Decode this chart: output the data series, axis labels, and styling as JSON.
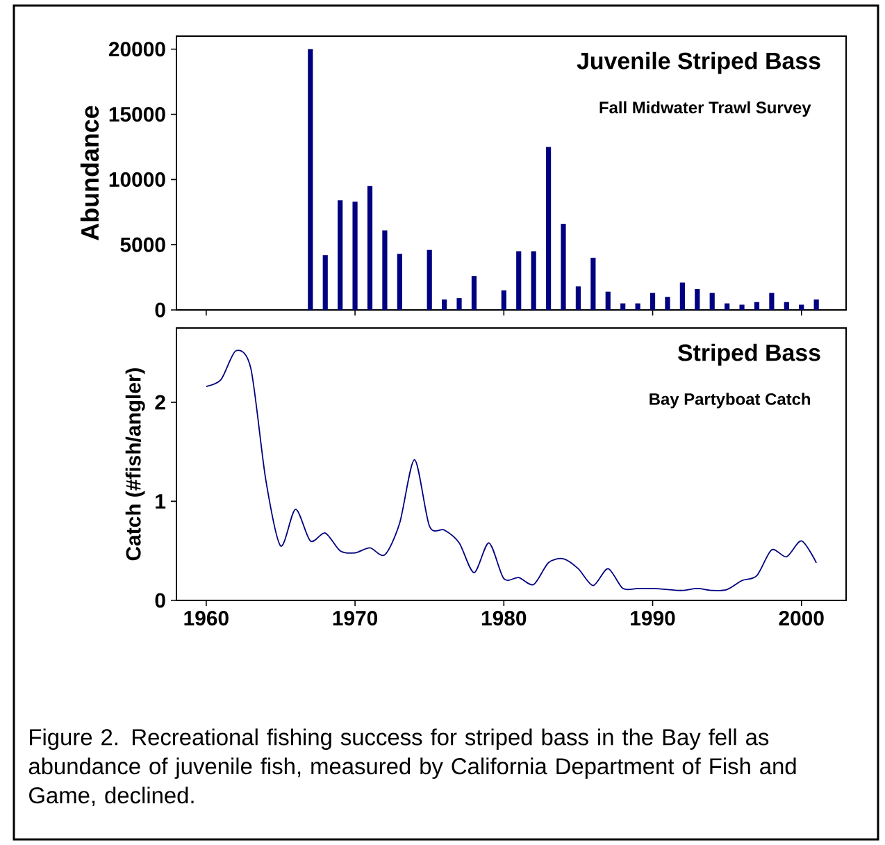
{
  "chart_data": [
    {
      "type": "bar",
      "title": "Juvenile Striped Bass",
      "subtitle": "Fall Midwater Trawl Survey",
      "ylabel": "Abundance",
      "x": [
        1967,
        1968,
        1969,
        1970,
        1971,
        1972,
        1973,
        1974,
        1975,
        1976,
        1977,
        1978,
        1979,
        1980,
        1981,
        1982,
        1983,
        1984,
        1985,
        1986,
        1987,
        1988,
        1989,
        1990,
        1991,
        1992,
        1993,
        1994,
        1995,
        1996,
        1997,
        1998,
        1999,
        2000,
        2001
      ],
      "values": [
        20000,
        4200,
        8400,
        8300,
        9500,
        6100,
        4300,
        null,
        4600,
        800,
        900,
        2600,
        null,
        1500,
        4500,
        4500,
        12500,
        6600,
        1800,
        4000,
        1400,
        500,
        500,
        1300,
        1000,
        2100,
        1600,
        1300,
        500,
        400,
        600,
        1300,
        600,
        400,
        800
      ],
      "color": "#000080",
      "xlim": [
        1958,
        2003
      ],
      "ylim": [
        0,
        21000
      ],
      "xticks": [
        1960,
        1970,
        1980,
        1990,
        2000
      ],
      "yticks": [
        0,
        5000,
        10000,
        15000,
        20000
      ],
      "tick_labels": "y"
    },
    {
      "type": "line",
      "title": "Striped Bass",
      "subtitle": "Bay Partyboat Catch",
      "xlabel": null,
      "ylabel": "Catch (#fish/angler)",
      "x": [
        1960,
        1961,
        1962,
        1963,
        1964,
        1965,
        1966,
        1967,
        1968,
        1969,
        1970,
        1971,
        1972,
        1973,
        1974,
        1975,
        1976,
        1977,
        1978,
        1979,
        1980,
        1981,
        1982,
        1983,
        1984,
        1985,
        1986,
        1987,
        1988,
        1989,
        1990,
        1991,
        1992,
        1993,
        1994,
        1995,
        1996,
        1997,
        1998,
        1999,
        2000,
        2001
      ],
      "values": [
        2.16,
        2.23,
        2.52,
        2.34,
        1.22,
        0.55,
        0.92,
        0.6,
        0.68,
        0.5,
        0.48,
        0.53,
        0.46,
        0.78,
        1.42,
        0.75,
        0.71,
        0.58,
        0.28,
        0.58,
        0.22,
        0.23,
        0.16,
        0.38,
        0.42,
        0.32,
        0.15,
        0.32,
        0.12,
        0.12,
        0.12,
        0.11,
        0.1,
        0.12,
        0.1,
        0.11,
        0.2,
        0.25,
        0.51,
        0.44,
        0.6,
        0.38
      ],
      "color": "#000080",
      "xlim": [
        1958,
        2003
      ],
      "ylim": [
        0,
        2.75
      ],
      "xticks": [
        1960,
        1970,
        1980,
        1990,
        2000
      ],
      "yticks": [
        0,
        1,
        2
      ],
      "annotations": [
        "Figure 2. Recreational fishing success for striped bass in the Bay fell as abundance of juvenile fish, measured by California Department of Fish and Game, declined."
      ]
    }
  ]
}
